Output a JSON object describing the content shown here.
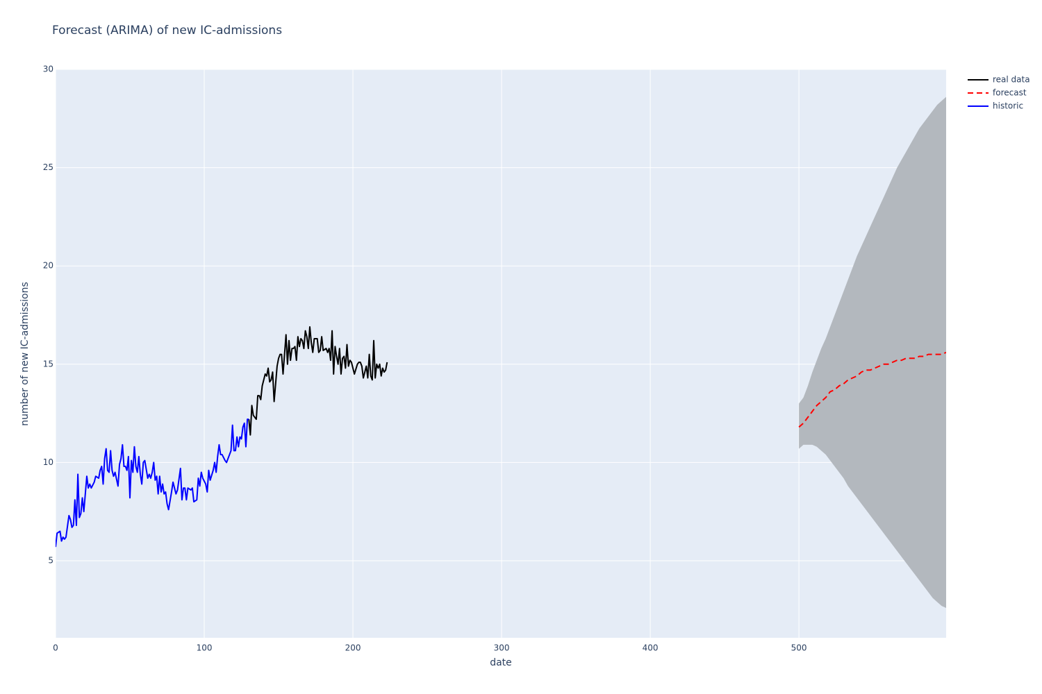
{
  "chart_data": {
    "type": "line",
    "title": "Forecast (ARIMA) of new IC-admissions",
    "x_label": "date",
    "y_label": "number of new IC-admissions",
    "xlim": [
      0,
      599
    ],
    "ylim": [
      1.08,
      30
    ],
    "xticks": [
      0,
      100,
      200,
      300,
      400,
      500
    ],
    "yticks": [
      5,
      10,
      15,
      20,
      25,
      30
    ],
    "grid": true,
    "legend": "outside-top-right",
    "background": "#e5ecf6",
    "series": [
      {
        "name": "real data",
        "color": "#000000",
        "dash": "solid",
        "x": [
          130,
          131,
          132,
          133,
          135,
          136,
          137,
          138,
          139,
          140,
          141,
          142,
          143,
          144,
          145,
          146,
          147,
          148,
          149,
          150,
          151,
          152,
          153,
          154,
          155,
          156,
          157,
          158,
          159,
          160,
          161,
          162,
          163,
          164,
          165,
          166,
          167,
          168,
          169,
          170,
          171,
          172,
          173,
          174,
          176,
          177,
          178,
          179,
          180,
          182,
          183,
          184,
          185,
          186,
          187,
          188,
          189,
          190,
          191,
          192,
          193,
          194,
          195,
          196,
          197,
          198,
          199,
          200,
          201,
          203,
          204,
          205,
          206,
          207,
          208,
          209,
          210,
          211,
          212,
          213,
          214,
          215,
          216,
          217,
          218,
          219,
          220,
          221,
          222,
          223
        ],
        "values": [
          12.2,
          11.4,
          12.9,
          12.4,
          12.2,
          13.4,
          13.4,
          13.2,
          13.9,
          14.2,
          14.5,
          14.4,
          14.8,
          14.1,
          14.2,
          14.6,
          13.1,
          14.0,
          14.9,
          15.3,
          15.5,
          15.5,
          14.5,
          15.5,
          16.5,
          15.0,
          16.2,
          15.2,
          15.8,
          15.8,
          15.9,
          15.2,
          16.4,
          15.9,
          16.3,
          16.2,
          15.8,
          16.7,
          16.4,
          15.8,
          16.9,
          16.1,
          15.6,
          16.3,
          16.3,
          15.6,
          15.7,
          16.4,
          15.7,
          15.8,
          15.6,
          15.8,
          15.2,
          16.7,
          14.5,
          15.9,
          15.4,
          15.0,
          15.8,
          14.5,
          15.3,
          15.4,
          14.8,
          16.0,
          14.9,
          15.2,
          15.1,
          14.8,
          14.5,
          15.0,
          15.1,
          15.1,
          14.9,
          14.3,
          14.6,
          14.9,
          14.3,
          15.5,
          14.4,
          14.2,
          16.2,
          14.3,
          15.0,
          14.8,
          15.0,
          14.4,
          14.8,
          14.6,
          14.7,
          15.1
        ]
      },
      {
        "name": "forecast",
        "color": "#ff0000",
        "dash": "dash",
        "x": [
          500,
          503,
          506,
          509,
          512,
          515,
          518,
          521,
          524,
          527,
          530,
          533,
          536,
          539,
          542,
          545,
          548,
          551,
          554,
          557,
          560,
          563,
          566,
          569,
          572,
          575,
          578,
          581,
          584,
          587,
          590,
          593,
          596,
          599
        ],
        "values": [
          11.8,
          12.0,
          12.3,
          12.6,
          12.9,
          13.1,
          13.3,
          13.6,
          13.7,
          13.9,
          14.0,
          14.2,
          14.3,
          14.4,
          14.6,
          14.7,
          14.7,
          14.8,
          14.9,
          15.0,
          15.0,
          15.1,
          15.2,
          15.2,
          15.3,
          15.3,
          15.3,
          15.4,
          15.4,
          15.5,
          15.5,
          15.5,
          15.5,
          15.6
        ]
      },
      {
        "name": "historic",
        "color": "#0000ff",
        "dash": "solid",
        "x": [
          0,
          1,
          3,
          4,
          5,
          6,
          7,
          9,
          10,
          11,
          12,
          13,
          14,
          15,
          16,
          17,
          18,
          19,
          21,
          22,
          23,
          24,
          26,
          27,
          29,
          30,
          31,
          32,
          33,
          34,
          35,
          36,
          37,
          38,
          39,
          40,
          42,
          43,
          44,
          45,
          46,
          47,
          48,
          49,
          50,
          51,
          52,
          53,
          54,
          55,
          56,
          57,
          58,
          59,
          60,
          62,
          63,
          64,
          65,
          66,
          67,
          68,
          69,
          70,
          71,
          72,
          73,
          74,
          75,
          76,
          78,
          79,
          80,
          81,
          82,
          84,
          85,
          86,
          87,
          88,
          89,
          91,
          92,
          93,
          95,
          96,
          97,
          98,
          99,
          101,
          102,
          103,
          104,
          106,
          107,
          108,
          109,
          110,
          111,
          112,
          114,
          115,
          117,
          118,
          119,
          120,
          121,
          122,
          123,
          124,
          125,
          126,
          127,
          128,
          129,
          130
        ],
        "values": [
          5.7,
          6.4,
          6.5,
          6.0,
          6.2,
          6.1,
          6.2,
          7.3,
          7.1,
          6.7,
          6.8,
          8.1,
          6.8,
          9.4,
          7.2,
          7.4,
          8.2,
          7.5,
          9.3,
          8.7,
          8.9,
          8.7,
          9.0,
          9.3,
          9.2,
          9.6,
          9.8,
          8.9,
          10.2,
          10.7,
          9.6,
          9.5,
          10.6,
          9.6,
          9.3,
          9.5,
          8.8,
          9.9,
          10.2,
          10.9,
          9.8,
          9.8,
          9.6,
          10.3,
          8.2,
          10.1,
          9.5,
          10.8,
          9.8,
          9.5,
          10.3,
          9.4,
          8.9,
          10.0,
          10.1,
          9.2,
          9.4,
          9.2,
          9.5,
          10.0,
          9.1,
          9.3,
          8.4,
          9.3,
          8.5,
          8.9,
          8.4,
          8.5,
          7.9,
          7.6,
          8.5,
          9.0,
          8.7,
          8.4,
          8.6,
          9.7,
          8.1,
          8.7,
          8.7,
          8.1,
          8.7,
          8.6,
          8.7,
          8.0,
          8.1,
          9.2,
          8.8,
          9.5,
          9.2,
          8.9,
          8.5,
          9.6,
          9.1,
          9.6,
          10.0,
          9.5,
          10.3,
          10.9,
          10.4,
          10.4,
          10.1,
          10.0,
          10.4,
          10.6,
          11.9,
          10.6,
          10.6,
          11.3,
          10.8,
          11.3,
          11.2,
          11.8,
          12.0,
          10.8,
          12.2,
          12.2
        ]
      }
    ],
    "band": {
      "color": "#b3b8be",
      "x": [
        500,
        503,
        506,
        509,
        512,
        515,
        518,
        521,
        524,
        527,
        530,
        533,
        536,
        539,
        542,
        545,
        548,
        551,
        554,
        557,
        560,
        563,
        566,
        569,
        572,
        575,
        578,
        581,
        584,
        587,
        590,
        593,
        596,
        599
      ],
      "upper": [
        13.0,
        13.3,
        13.9,
        14.6,
        15.2,
        15.8,
        16.3,
        16.9,
        17.5,
        18.1,
        18.7,
        19.3,
        19.9,
        20.5,
        21.0,
        21.5,
        22.0,
        22.5,
        23.0,
        23.5,
        24.0,
        24.5,
        25.0,
        25.4,
        25.8,
        26.2,
        26.6,
        27.0,
        27.3,
        27.6,
        27.9,
        28.2,
        28.4,
        28.6
      ],
      "lower": [
        10.7,
        10.9,
        10.9,
        10.9,
        10.8,
        10.6,
        10.4,
        10.1,
        9.8,
        9.5,
        9.2,
        8.8,
        8.5,
        8.2,
        7.9,
        7.6,
        7.3,
        7.0,
        6.7,
        6.4,
        6.1,
        5.8,
        5.5,
        5.2,
        4.9,
        4.6,
        4.3,
        4.0,
        3.7,
        3.4,
        3.1,
        2.9,
        2.7,
        2.6
      ]
    }
  }
}
